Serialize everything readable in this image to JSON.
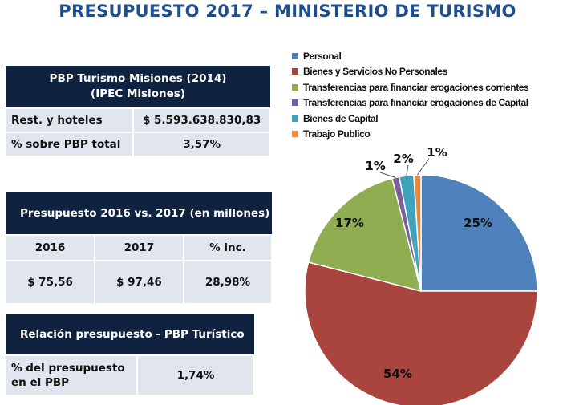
{
  "title": "PRESUPUESTO 2017 – MINISTERIO DE TURISMO",
  "table1": {
    "header_line1": "PBP Turismo Misiones (2014)",
    "header_line2": "(IPEC Misiones)",
    "rows": [
      {
        "label": "Rest. y hoteles",
        "value": "$ 5.593.638.830,83"
      },
      {
        "label": "% sobre PBP total",
        "value": "3,57%"
      }
    ]
  },
  "table2": {
    "header": "Presupuesto 2016 vs. 2017 (en millones)",
    "columns": [
      "2016",
      "2017",
      "% inc."
    ],
    "values": [
      "$ 75,56",
      "$ 97,46",
      "28,98%"
    ]
  },
  "table3": {
    "header": "Relación presupuesto  - PBP Turístico",
    "label": "% del presupuesto en el PBP",
    "value": "1,74%"
  },
  "chart_data": {
    "type": "pie",
    "legend_position": "top-right",
    "start": "top",
    "direction": "clockwise",
    "categories": [
      "Personal",
      "Bienes y Servicios No Personales",
      "Transferencias para financiar erogaciones corrientes",
      "Transferencias para financiar erogaciones de Capital",
      "Bienes de Capital",
      "Trabajo Publico"
    ],
    "values": [
      25,
      54,
      17,
      1,
      2,
      1
    ],
    "labels": [
      "25%",
      "54%",
      "17%",
      "1%",
      "2%",
      "1%"
    ],
    "colors": [
      "#4F81BD",
      "#A9443F",
      "#8FAE52",
      "#7A5F9C",
      "#3FA3BE",
      "#E8893F"
    ]
  }
}
